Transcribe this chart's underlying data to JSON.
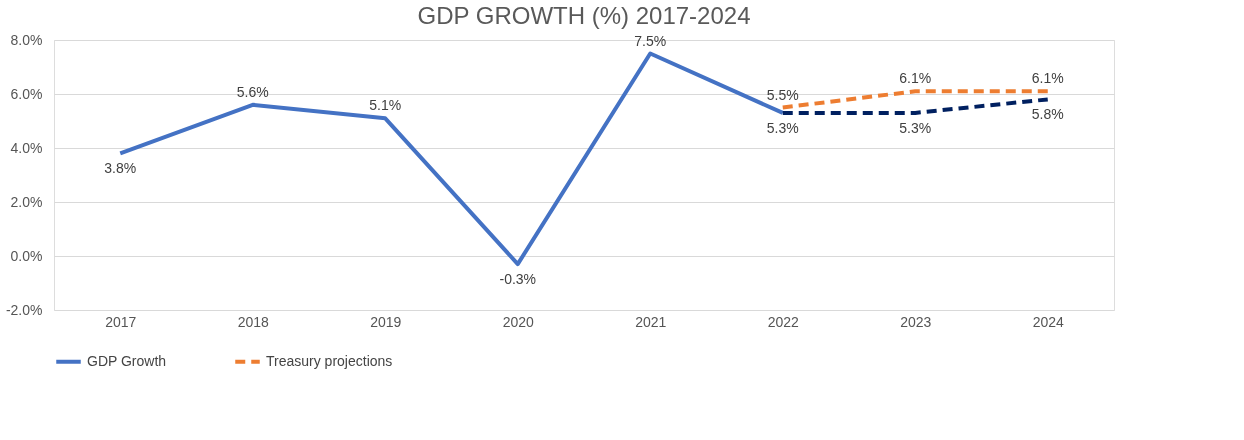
{
  "chart_data": {
    "type": "line",
    "title": "GDP GROWTH (%) 2017-2024",
    "categories": [
      "2017",
      "2018",
      "2019",
      "2020",
      "2021",
      "2022",
      "2023",
      "2024"
    ],
    "series": [
      {
        "name": "GDP Growth",
        "color": "#4472c4",
        "line_style": "solid",
        "values": [
          3.8,
          5.6,
          5.1,
          -0.3,
          7.5,
          5.3,
          null,
          null
        ],
        "value_labels": [
          "3.8%",
          "5.6%",
          "5.1%",
          "-0.3%",
          "7.5%",
          "5.3%",
          null,
          null
        ]
      },
      {
        "name": "Treasury projections",
        "color": "#ed7d31",
        "line_style": "dashed",
        "values": [
          null,
          null,
          null,
          null,
          null,
          5.5,
          6.1,
          6.1
        ],
        "value_labels": [
          null,
          null,
          null,
          null,
          null,
          "5.5%",
          "6.1%",
          "6.1%"
        ]
      },
      {
        "color": "#002060",
        "line_style": "dashed",
        "values": [
          null,
          null,
          null,
          null,
          null,
          5.3,
          5.3,
          5.8
        ],
        "value_labels": [
          null,
          null,
          null,
          null,
          null,
          null,
          "5.3%",
          "5.8%"
        ]
      }
    ],
    "ylim": [
      -2,
      8
    ],
    "yticks": [
      {
        "value": -2,
        "label": "-2.0%"
      },
      {
        "value": 0,
        "label": "0.0%"
      },
      {
        "value": 2,
        "label": "2.0%"
      },
      {
        "value": 4,
        "label": "4.0%"
      },
      {
        "value": 6,
        "label": "6.0%"
      },
      {
        "value": 8,
        "label": "8.0%"
      }
    ],
    "grid": "y",
    "legend": "bottom",
    "marker": "none"
  }
}
